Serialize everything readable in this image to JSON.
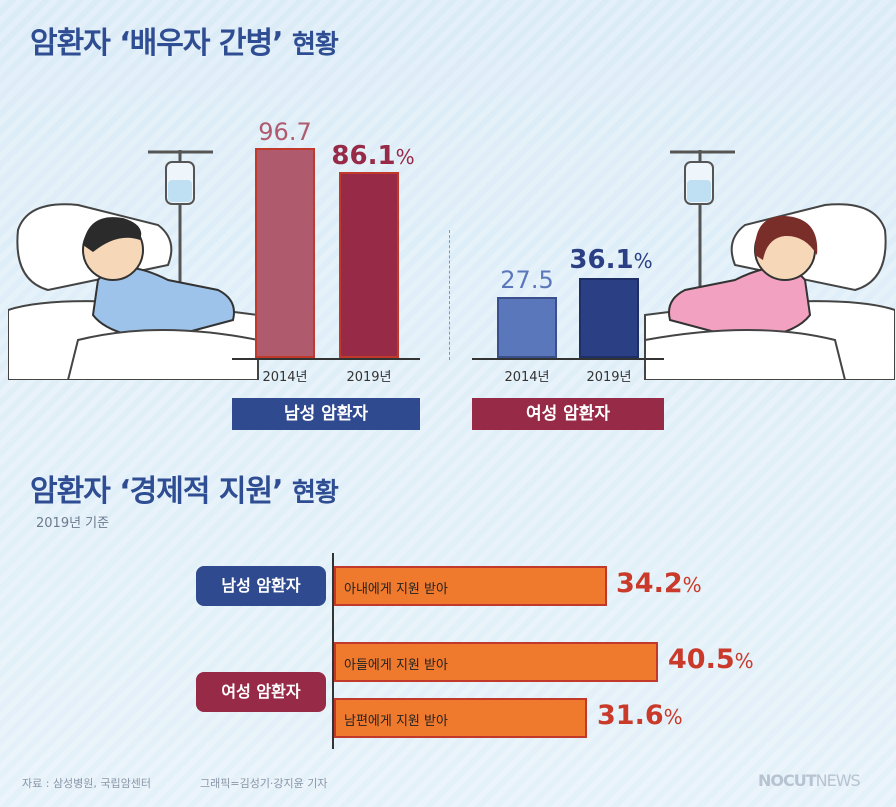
{
  "section1": {
    "title": "암환자 ‘배우자 간병’",
    "title_suffix": "현황",
    "groups": [
      {
        "label": "남성 암환자",
        "color_2014": "#b05a6e",
        "color_2019": "#962a47",
        "label_bg": "#2f4a8f",
        "ticks": [
          "2014년",
          "2019년"
        ],
        "value_text_2014": "96.7",
        "value_text_2019": "86.1",
        "pct_symbol": "%"
      },
      {
        "label": "여성 암환자",
        "color_2014": "#5b77bb",
        "color_2019": "#2b3f84",
        "label_bg": "#962a47",
        "ticks": [
          "2014년",
          "2019년"
        ],
        "value_text_2014": "27.5",
        "value_text_2019": "36.1",
        "pct_symbol": "%"
      }
    ]
  },
  "section2": {
    "title": "암환자 ‘경제적 지원’",
    "title_suffix": "현황",
    "note": "2019년 기준",
    "groups": [
      {
        "label": "남성 암환자",
        "bg": "#2f4a8f"
      },
      {
        "label": "여성 암환자",
        "bg": "#962a47"
      }
    ],
    "bars": [
      {
        "label": "아내에게 지원 받아",
        "value_text": "34.2",
        "pct": "%"
      },
      {
        "label": "아들에게 지원 받아",
        "value_text": "40.5",
        "pct": "%"
      },
      {
        "label": "남편에게 지원 받아",
        "value_text": "31.6",
        "pct": "%"
      }
    ]
  },
  "footer": {
    "source": "자료 : 삼성병원, 국립암센터",
    "credit": "그래픽=김성기·강지윤 기자",
    "logo_bold": "NOCUT",
    "logo_thin": "NEWS"
  },
  "chart_data": [
    {
      "type": "bar",
      "title": "암환자 ‘배우자 간병’ 현황",
      "categories": [
        "2014년",
        "2019년"
      ],
      "series": [
        {
          "name": "남성 암환자",
          "values": [
            96.7,
            86.1
          ]
        },
        {
          "name": "여성 암환자",
          "values": [
            27.5,
            36.1
          ]
        }
      ],
      "unit": "%",
      "ylim": [
        0,
        100
      ]
    },
    {
      "type": "bar",
      "orientation": "horizontal",
      "title": "암환자 ‘경제적 지원’ 현황",
      "subtitle": "2019년 기준",
      "groups": [
        "남성 암환자",
        "여성 암환자",
        "여성 암환자"
      ],
      "categories": [
        "아내에게 지원 받아",
        "아들에게 지원 받아",
        "남편에게 지원 받아"
      ],
      "values": [
        34.2,
        40.5,
        31.6
      ],
      "unit": "%",
      "xlim": [
        0,
        50
      ]
    }
  ]
}
